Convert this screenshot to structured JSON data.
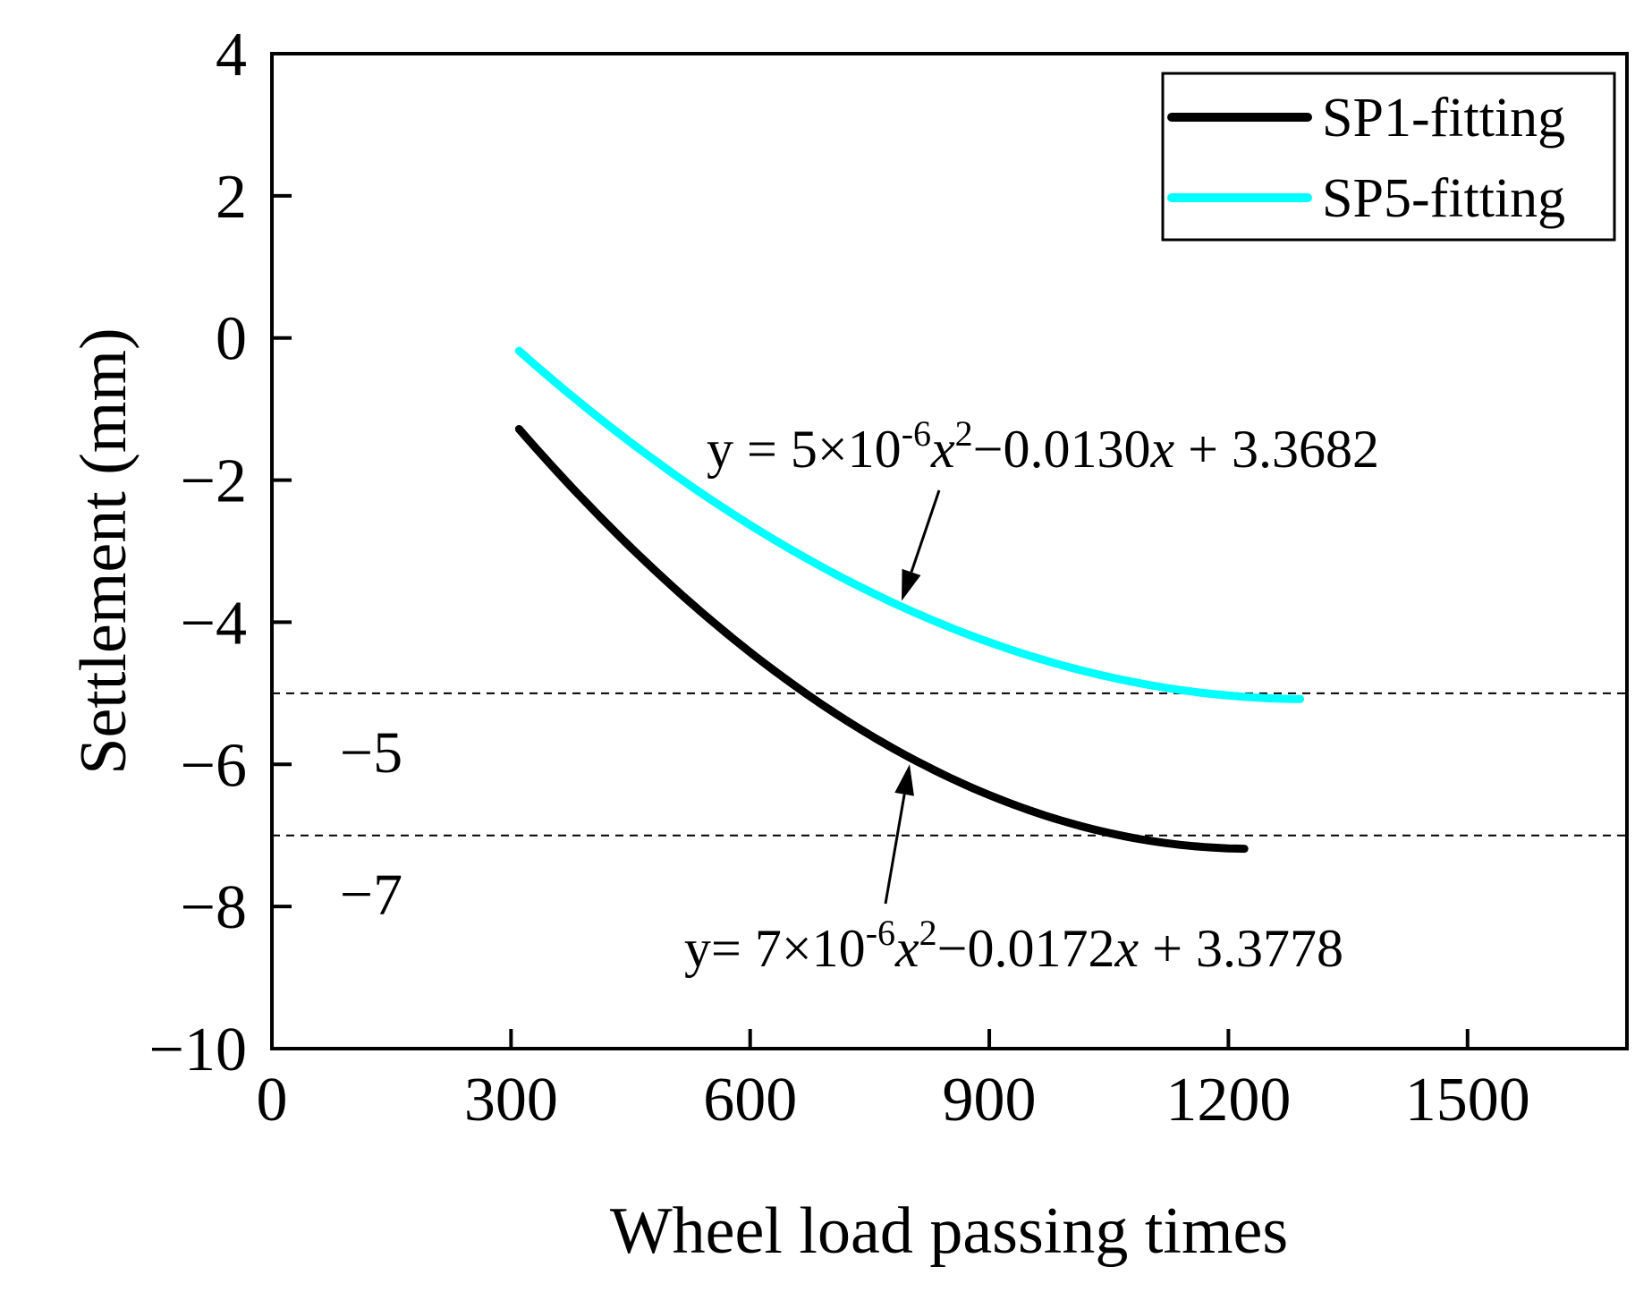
{
  "chart_data": {
    "type": "line",
    "title": "",
    "xlabel": "Wheel load passing times",
    "ylabel": "Settlement (mm)",
    "xlim": [
      0,
      1700
    ],
    "ylim": [
      -10,
      4
    ],
    "xticks": [
      0,
      300,
      600,
      900,
      1200,
      1500
    ],
    "yticks": [
      4,
      2,
      0,
      -2,
      -4,
      -6,
      -8,
      -10
    ],
    "xtick_labels": [
      "0",
      "300",
      "600",
      "900",
      "1200",
      "1500"
    ],
    "ytick_labels": [
      "4",
      "2",
      "0",
      "−2",
      "−4",
      "−6",
      "−8",
      "−10"
    ],
    "grid": false,
    "legend_position": "top-right",
    "series": [
      {
        "name": "SP1-fitting",
        "color": "#000000",
        "x_range": [
          310,
          1220
        ],
        "equation": {
          "a": 7e-06,
          "b": -0.0172,
          "c": 3.3778
        },
        "annotation": {
          "prefix": "y= 7×10",
          "exp1": "-6",
          "var1": "x",
          "exp2": "2",
          "mid": "−0.0172",
          "var2": "x",
          "suffix": " + 3.3778",
          "arrow_points_to": [
            800,
            -6.0
          ],
          "placement": "below"
        }
      },
      {
        "name": "SP5-fitting",
        "color": "#00FFFF",
        "x_range": [
          310,
          1290
        ],
        "equation": {
          "a": 5e-06,
          "b": -0.013,
          "c": 3.3682
        },
        "annotation": {
          "prefix": "y = 5×10",
          "exp1": "-6",
          "var1": "x",
          "exp2": "2",
          "mid": "−0.0130",
          "var2": "x",
          "suffix": " + 3.3682",
          "arrow_points_to": [
            790,
            -3.7
          ],
          "placement": "above"
        }
      }
    ],
    "reference_lines": [
      {
        "y": -5,
        "label": "−5",
        "style": "dashed"
      },
      {
        "y": -7,
        "label": "−7",
        "style": "dashed"
      }
    ]
  }
}
